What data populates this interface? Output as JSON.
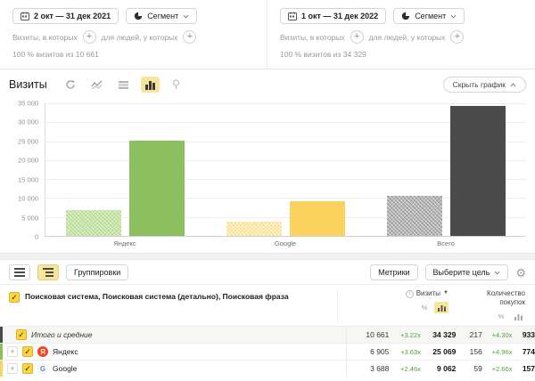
{
  "colors": {
    "accent_yellow": "#f7e59c",
    "delta_green": "#53a33a"
  },
  "segments": [
    {
      "date_range": "2 окт — 31 дек 2021",
      "segment_label": "Сегмент",
      "visits_filter_label": "Визиты, в которых",
      "people_filter_label": "для людей, у которых",
      "summary": "100 % визитов из 10 661"
    },
    {
      "date_range": "1 окт — 31 дек 2022",
      "segment_label": "Сегмент",
      "visits_filter_label": "Визиты, в которых",
      "people_filter_label": "для людей, у которых",
      "summary": "100 % визитов из 34 329"
    }
  ],
  "chart": {
    "title": "Визиты",
    "hide_button": "Скрыть график"
  },
  "chart_data": {
    "type": "bar",
    "title": "Визиты",
    "categories": [
      "Яндекс",
      "Google",
      "Всего"
    ],
    "series": [
      {
        "name": "2 окт — 31 дек 2021",
        "style": "hatched",
        "values": [
          6905,
          3688,
          10661
        ]
      },
      {
        "name": "1 окт — 31 дек 2022",
        "style": "solid",
        "values": [
          25069,
          9062,
          34329
        ]
      }
    ],
    "colors": [
      [
        "#b5da8c",
        "#8cc05f"
      ],
      [
        "#fbe093",
        "#fdd35f"
      ],
      [
        "#9b9b9b",
        "#4b4b4b"
      ]
    ],
    "ylim": [
      0,
      35000
    ],
    "yticks": [
      "35 000",
      "30 000",
      "25 000",
      "20 000",
      "15 000",
      "10 000",
      "5 000",
      "0"
    ],
    "grid": true,
    "legend": false
  },
  "table": {
    "groupings_button": "Группировки",
    "metrics_button": "Метрики",
    "goal_select": "Выберите цель",
    "grouping_title": "Поисковая система, Поисковая система (детально), Поисковая фраза",
    "columns": {
      "visits": "Визиты",
      "purchases_line1": "Количество",
      "purchases_line2": "покупок"
    },
    "rows": [
      {
        "label": "Итого и средние",
        "stripe": "#4b4b4b",
        "v1": "10 661",
        "delta1": "+3.22x",
        "v2": "34 329",
        "p1": "217",
        "delta2": "+4.30x",
        "p2": "933"
      },
      {
        "label": "Яндекс",
        "stripe": "#8cc05f",
        "v1": "6 905",
        "delta1": "+3.63x",
        "v2": "25 069",
        "p1": "156",
        "delta2": "+4.96x",
        "p2": "774"
      },
      {
        "label": "Google",
        "stripe": "#fdd35f",
        "v1": "3 688",
        "delta1": "+2.46x",
        "v2": "9 062",
        "p1": "59",
        "delta2": "+2.66x",
        "p2": "157"
      }
    ]
  }
}
